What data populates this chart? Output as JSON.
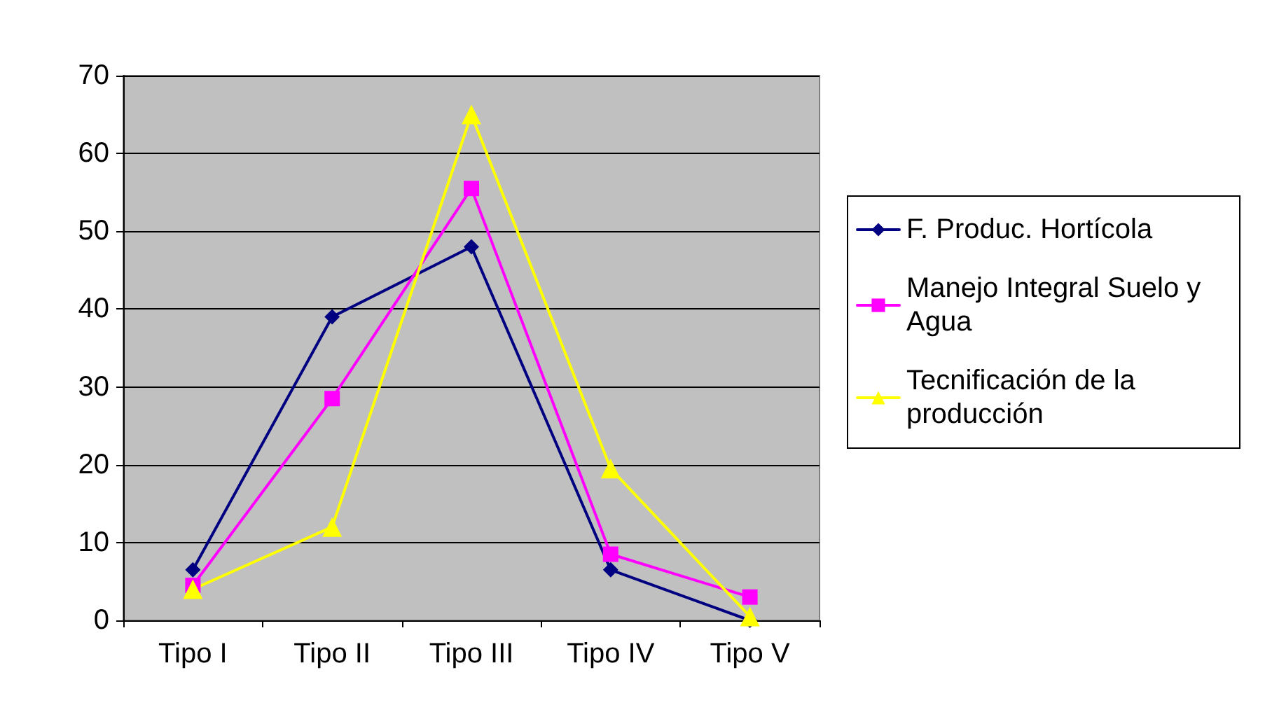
{
  "chart_data": {
    "type": "line",
    "categories": [
      "Tipo I",
      "Tipo II",
      "Tipo III",
      "Tipo IV",
      "Tipo V"
    ],
    "series": [
      {
        "name": "F. Produc. Hortícola",
        "color": "#000080",
        "marker": "diamond",
        "values": [
          6.5,
          39,
          48,
          6.5,
          0
        ]
      },
      {
        "name": "Manejo Integral Suelo y Agua",
        "color": "#ff00ff",
        "marker": "square",
        "values": [
          4.5,
          28.5,
          55.5,
          8.5,
          3
        ]
      },
      {
        "name": "Tecnificación de la producción",
        "color": "#ffff00",
        "marker": "triangle",
        "values": [
          4,
          12,
          65,
          19.5,
          0.5
        ]
      }
    ],
    "ylim": [
      0,
      70
    ],
    "yticks": [
      0,
      10,
      20,
      30,
      40,
      50,
      60,
      70
    ],
    "grid": "y",
    "legend": "right",
    "line_style": "solid"
  }
}
